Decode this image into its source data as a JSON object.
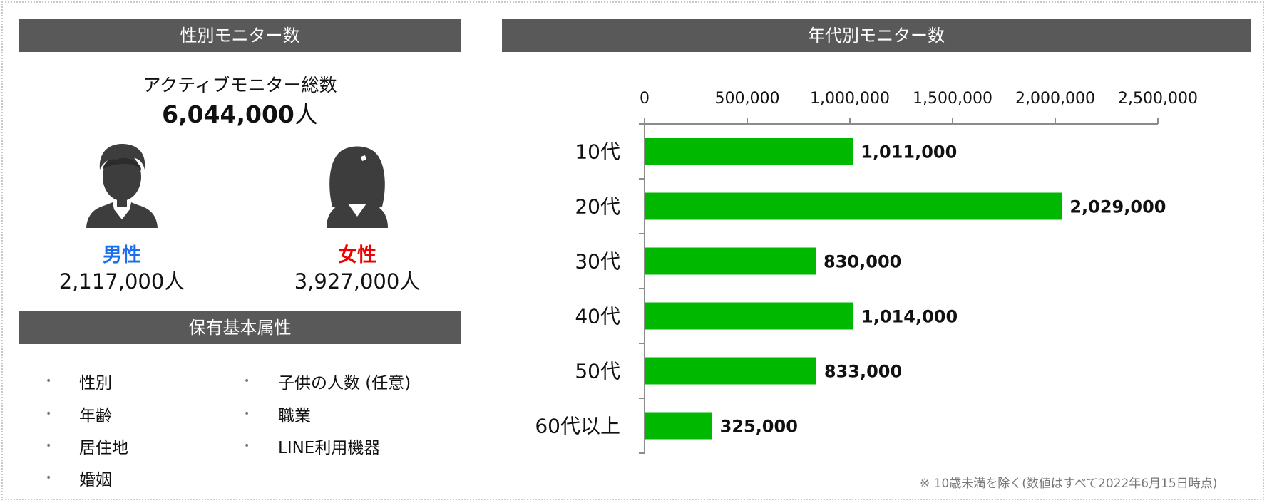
{
  "gender_panel": {
    "title": "性別モニター数",
    "total_label": "アクティブモニター総数",
    "total_value": "6,044,000",
    "total_unit": "人",
    "male": {
      "label": "男性",
      "count": "2,117,000人",
      "color": "#1a6ff0",
      "icon": "male-person-icon"
    },
    "female": {
      "label": "女性",
      "count": "3,927,000人",
      "color": "#ee0000",
      "icon": "female-person-icon"
    }
  },
  "attributes_panel": {
    "title": "保有基本属性",
    "left_items": [
      "性別",
      "年齢",
      "居住地",
      "婚姻"
    ],
    "right_items": [
      "子供の人数 (任意)",
      "職業",
      "LINE利用機器"
    ]
  },
  "age_panel": {
    "title": "年代別モニター数",
    "footnote": "※ 10歳未満を除く(数値はすべて2022年6月15日時点)"
  },
  "chart_data": {
    "type": "bar",
    "orientation": "horizontal",
    "categories": [
      "10代",
      "20代",
      "30代",
      "40代",
      "50代",
      "60代以上"
    ],
    "values": [
      1011000,
      2029000,
      830000,
      1014000,
      833000,
      325000
    ],
    "value_labels": [
      "1,011,000",
      "2,029,000",
      "830,000",
      "1,014,000",
      "833,000",
      "325,000"
    ],
    "xlim": [
      0,
      2500000
    ],
    "ticks": [
      0,
      500000,
      1000000,
      1500000,
      2000000,
      2500000
    ],
    "tick_labels": [
      "0",
      "500,000",
      "1,000,000",
      "1,500,000",
      "2,000,000",
      "2,500,000"
    ],
    "axis_position": "top",
    "bar_color": "#00b800",
    "grid": false
  }
}
